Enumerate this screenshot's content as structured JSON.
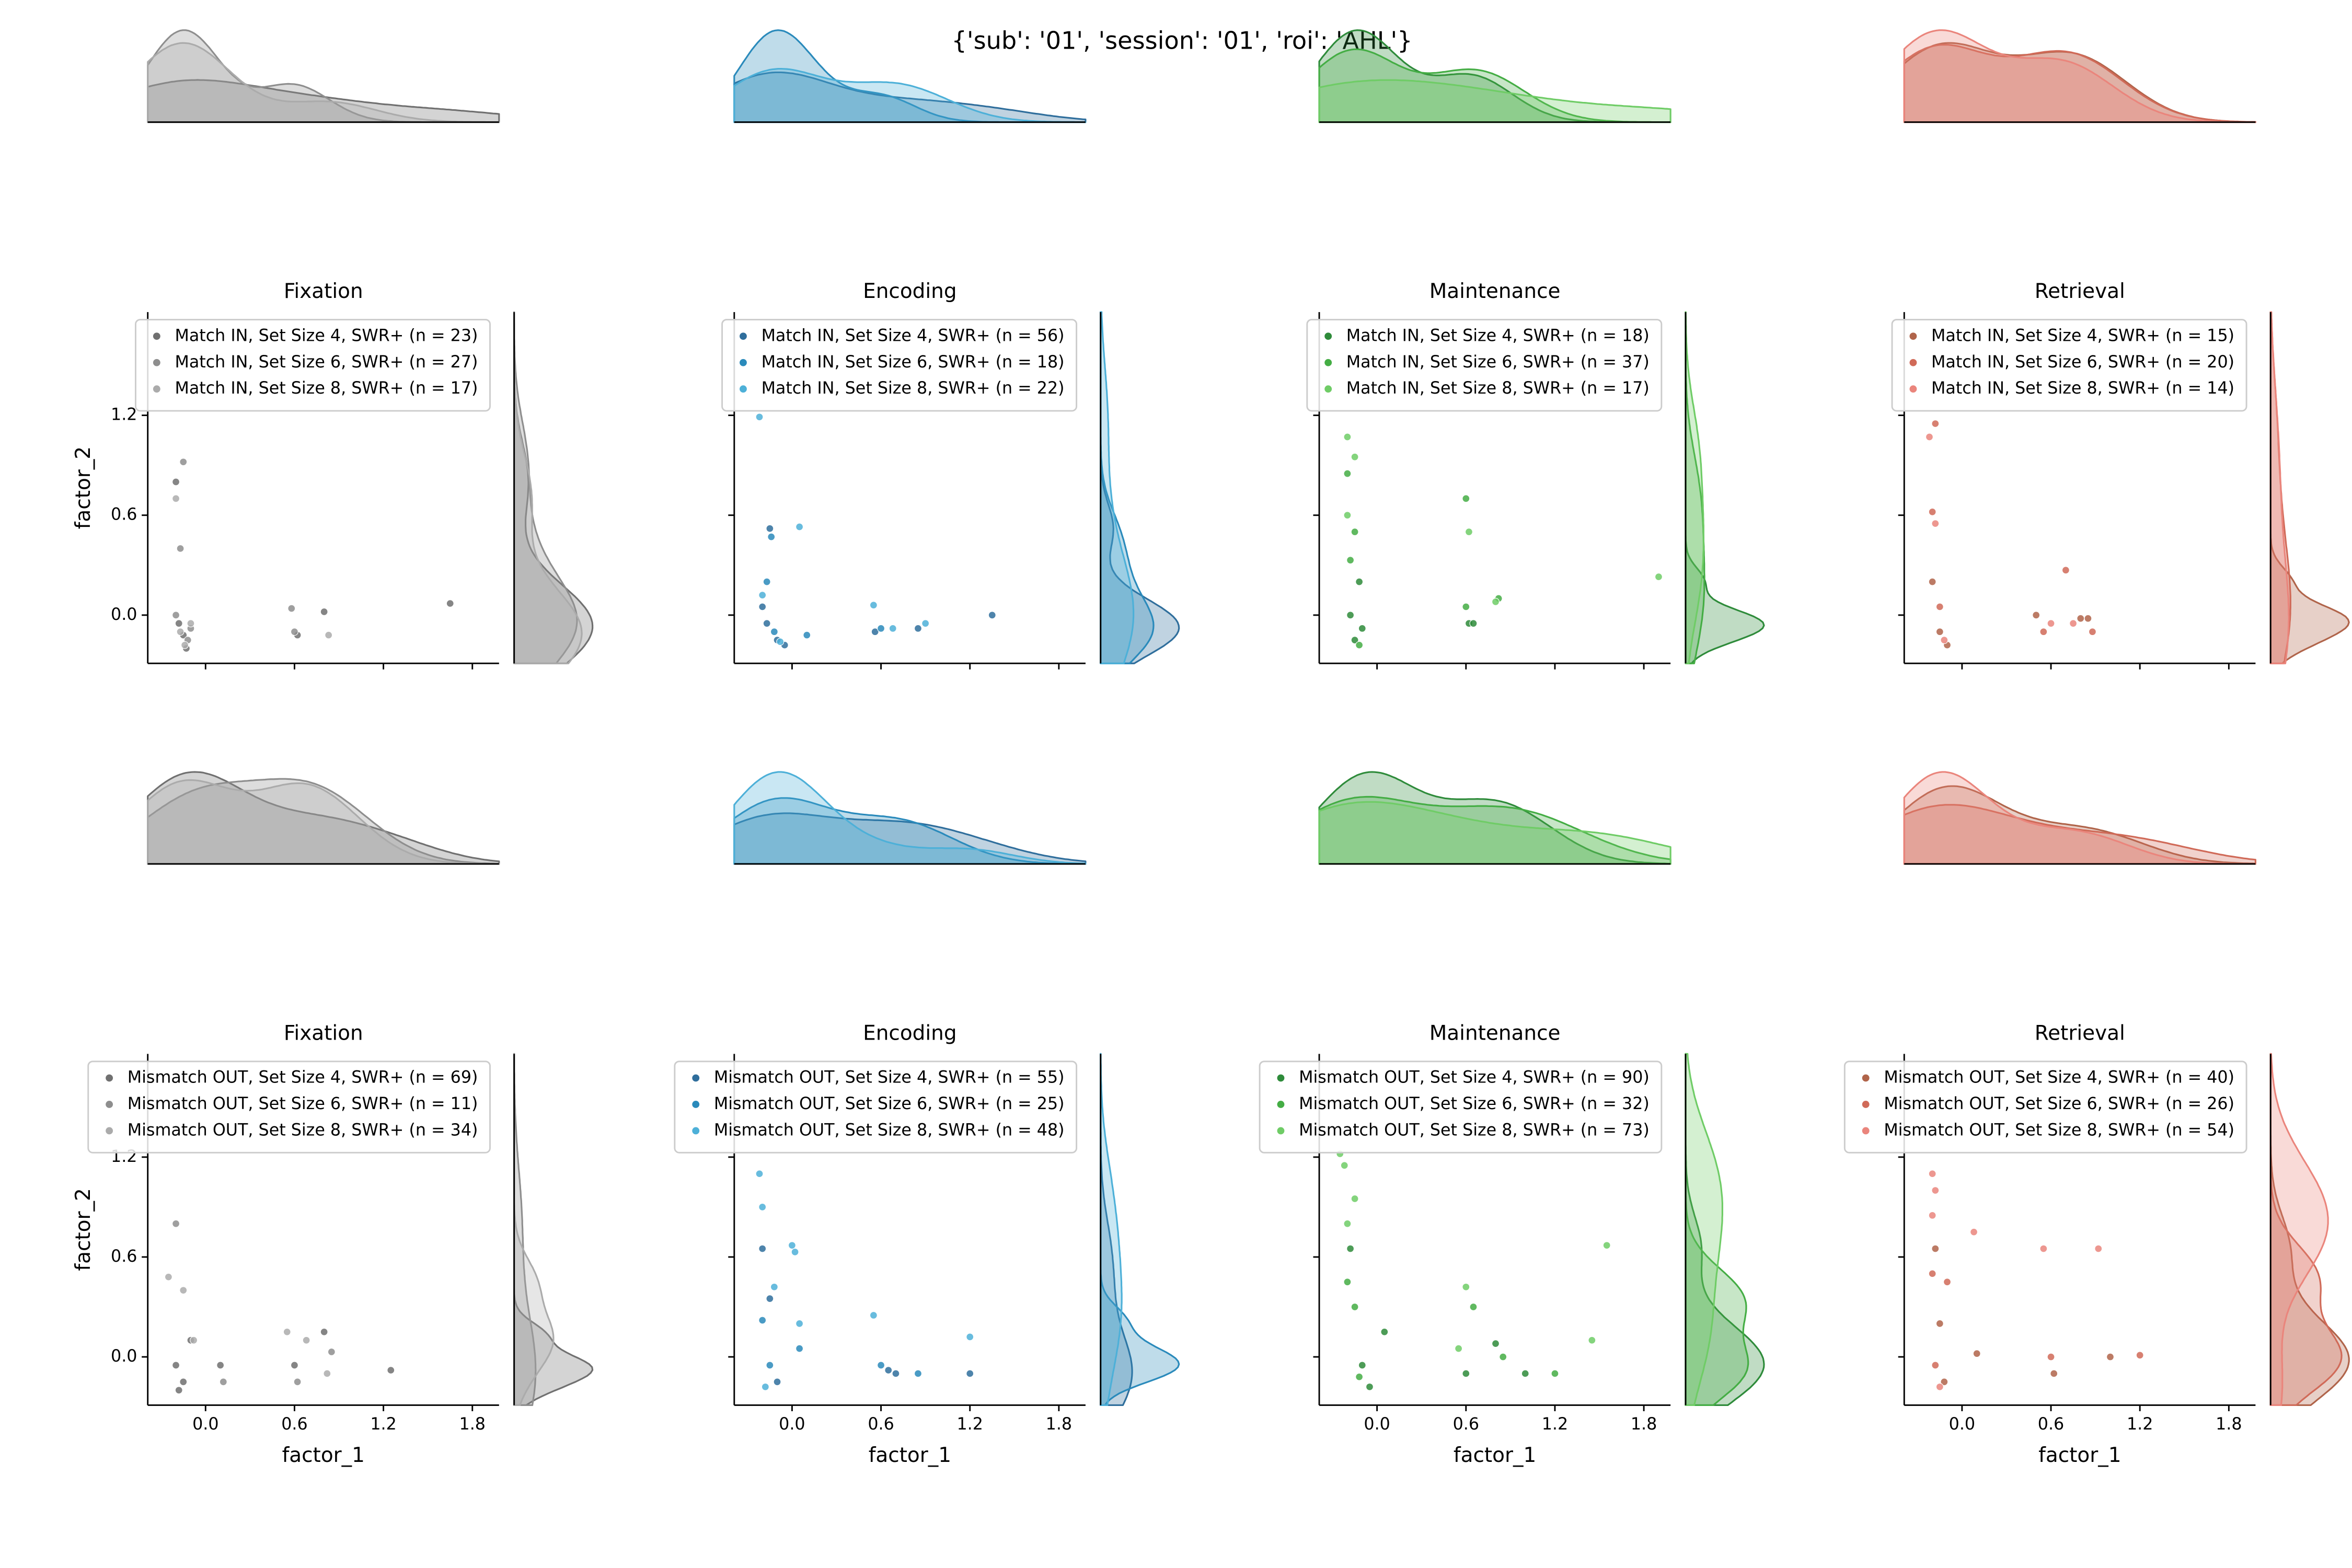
{
  "title": "{'sub': '01', 'session': '01', 'roi': 'AHL'}",
  "chart_data": [
    {
      "type": "scatter",
      "title": "Fixation",
      "ylabel": "factor_2",
      "xtick_labels": false,
      "ytick_labels": true,
      "xlim": [
        -0.39,
        1.98
      ],
      "ylim": [
        -0.29,
        1.82
      ],
      "xticks": [
        0,
        0.6,
        1.2,
        1.8
      ],
      "yticks": [
        {
          "value": 0,
          "label": "0.0"
        },
        0.6,
        1.2
      ],
      "series": [
        {
          "name": "Match IN, Set Size 4, SWR+ (n = 23)",
          "color": "#707070",
          "x": [
            -0.2,
            -0.18,
            -0.15,
            -0.13,
            0.62,
            0.8,
            1.65
          ],
          "y": [
            0.8,
            -0.05,
            -0.12,
            -0.2,
            -0.12,
            0.02,
            0.07
          ]
        },
        {
          "name": "Match IN, Set Size 6, SWR+ (n = 27)",
          "color": "#8e8e8e",
          "x": [
            -0.15,
            -0.17,
            -0.12,
            -0.2,
            0.58,
            0.6,
            -0.1
          ],
          "y": [
            0.92,
            0.4,
            -0.15,
            0.0,
            0.04,
            -0.1,
            -0.08
          ]
        },
        {
          "name": "Match IN, Set Size 8, SWR+ (n = 17)",
          "color": "#ababab",
          "x": [
            -0.2,
            -0.17,
            -0.14,
            0.83,
            -0.1
          ],
          "y": [
            0.7,
            -0.1,
            -0.18,
            -0.12,
            -0.05
          ]
        }
      ]
    },
    {
      "type": "scatter",
      "title": "Encoding",
      "xtick_labels": false,
      "ytick_labels": false,
      "xlim": [
        -0.39,
        1.98
      ],
      "ylim": [
        -0.29,
        1.82
      ],
      "xticks": [
        0,
        0.6,
        1.2,
        1.8
      ],
      "yticks": [
        0,
        0.6,
        1.2
      ],
      "series": [
        {
          "name": "Match IN, Set Size 4, SWR+ (n = 56)",
          "color": "#2f6e9c",
          "x": [
            -0.15,
            -0.2,
            -0.1,
            -0.05,
            0.56,
            0.85,
            1.35,
            -0.17
          ],
          "y": [
            0.52,
            0.05,
            -0.15,
            -0.18,
            -0.1,
            -0.08,
            0.0,
            -0.05
          ]
        },
        {
          "name": "Match IN, Set Size 6, SWR+ (n = 18)",
          "color": "#2a8abb",
          "x": [
            -0.14,
            -0.17,
            0.1,
            0.6,
            -0.12
          ],
          "y": [
            0.47,
            0.2,
            -0.12,
            -0.08,
            -0.1
          ]
        },
        {
          "name": "Match IN, Set Size 8, SWR+ (n = 22)",
          "color": "#4db0d8",
          "x": [
            -0.22,
            0.05,
            -0.2,
            0.55,
            0.68,
            0.9,
            -0.08
          ],
          "y": [
            1.19,
            0.53,
            0.12,
            0.06,
            -0.08,
            -0.05,
            -0.16
          ]
        }
      ]
    },
    {
      "type": "scatter",
      "title": "Maintenance",
      "xtick_labels": false,
      "ytick_labels": false,
      "xlim": [
        -0.39,
        1.98
      ],
      "ylim": [
        -0.29,
        1.82
      ],
      "xticks": [
        0,
        0.6,
        1.2,
        1.8
      ],
      "yticks": [
        0,
        0.6,
        1.2
      ],
      "series": [
        {
          "name": "Match IN, Set Size 4, SWR+ (n = 18)",
          "color": "#2e8b3a",
          "x": [
            -0.18,
            -0.15,
            -0.12,
            0.62,
            0.65,
            -0.1
          ],
          "y": [
            0.0,
            -0.15,
            0.2,
            -0.05,
            -0.05,
            -0.08
          ]
        },
        {
          "name": "Match IN, Set Size 6, SWR+ (n = 37)",
          "color": "#44ad44",
          "x": [
            -0.2,
            -0.15,
            0.6,
            0.6,
            0.82,
            -0.18,
            -0.12
          ],
          "y": [
            0.85,
            0.5,
            0.7,
            0.05,
            0.1,
            0.33,
            -0.18
          ]
        },
        {
          "name": "Match IN, Set Size 8, SWR+ (n = 17)",
          "color": "#6fcc66",
          "x": [
            -0.2,
            -0.15,
            -0.2,
            0.62,
            0.8,
            1.9
          ],
          "y": [
            1.07,
            0.95,
            0.6,
            0.5,
            0.08,
            0.23
          ]
        }
      ]
    },
    {
      "type": "scatter",
      "title": "Retrieval",
      "xtick_labels": false,
      "ytick_labels": false,
      "xlim": [
        -0.39,
        1.98
      ],
      "ylim": [
        -0.29,
        1.82
      ],
      "xticks": [
        0,
        0.6,
        1.2,
        1.8
      ],
      "yticks": [
        0,
        0.6,
        1.2
      ],
      "series": [
        {
          "name": "Match IN, Set Size 4, SWR+ (n = 15)",
          "color": "#b0644a",
          "x": [
            -0.2,
            -0.15,
            -0.1,
            0.5,
            0.8,
            0.85
          ],
          "y": [
            0.2,
            -0.1,
            -0.18,
            0.0,
            -0.02,
            -0.02
          ]
        },
        {
          "name": "Match IN, Set Size 6, SWR+ (n = 20)",
          "color": "#d06a58",
          "x": [
            -0.18,
            -0.2,
            0.55,
            0.7,
            0.88,
            -0.15
          ],
          "y": [
            1.15,
            0.62,
            -0.1,
            0.27,
            -0.1,
            0.05
          ]
        },
        {
          "name": "Match IN, Set Size 8, SWR+ (n = 14)",
          "color": "#ea857c",
          "x": [
            -0.22,
            -0.18,
            0.6,
            0.75,
            -0.12
          ],
          "y": [
            1.07,
            0.55,
            -0.05,
            -0.05,
            -0.15
          ]
        }
      ]
    },
    {
      "type": "scatter",
      "title": "Fixation",
      "xlabel": "factor_1",
      "ylabel": "factor_2",
      "xtick_labels": true,
      "ytick_labels": true,
      "xlim": [
        -0.39,
        1.98
      ],
      "ylim": [
        -0.29,
        1.82
      ],
      "xticks": [
        {
          "value": 0,
          "label": "0.0"
        },
        0.6,
        1.2,
        1.8
      ],
      "yticks": [
        {
          "value": 0,
          "label": "0.0"
        },
        0.6,
        1.2
      ],
      "series": [
        {
          "name": "Mismatch OUT, Set Size 4, SWR+ (n = 69)",
          "color": "#707070",
          "x": [
            -0.2,
            -0.15,
            -0.1,
            0.1,
            0.6,
            0.8,
            1.25,
            -0.18
          ],
          "y": [
            -0.05,
            -0.15,
            0.1,
            -0.05,
            -0.05,
            0.15,
            -0.08,
            -0.2
          ]
        },
        {
          "name": "Mismatch OUT, Set Size 6, SWR+ (n = 11)",
          "color": "#8e8e8e",
          "x": [
            -0.2,
            0.12,
            0.62,
            0.85
          ],
          "y": [
            0.8,
            -0.15,
            -0.15,
            0.03
          ]
        },
        {
          "name": "Mismatch OUT, Set Size 8, SWR+ (n = 34)",
          "color": "#ababab",
          "x": [
            -0.25,
            -0.15,
            -0.08,
            0.55,
            0.68,
            0.82
          ],
          "y": [
            0.48,
            0.4,
            0.1,
            0.15,
            0.1,
            -0.1
          ]
        }
      ]
    },
    {
      "type": "scatter",
      "title": "Encoding",
      "xlabel": "factor_1",
      "xtick_labels": true,
      "ytick_labels": false,
      "xlim": [
        -0.39,
        1.98
      ],
      "ylim": [
        -0.29,
        1.82
      ],
      "xticks": [
        {
          "value": 0,
          "label": "0.0"
        },
        0.6,
        1.2,
        1.8
      ],
      "yticks": [
        0,
        0.6,
        1.2
      ],
      "series": [
        {
          "name": "Mismatch OUT, Set Size 4, SWR+ (n = 55)",
          "color": "#2f6e9c",
          "x": [
            -0.2,
            -0.15,
            0.65,
            0.7,
            1.2,
            -0.1
          ],
          "y": [
            0.65,
            0.35,
            -0.08,
            -0.1,
            -0.1,
            -0.15
          ]
        },
        {
          "name": "Mismatch OUT, Set Size 6, SWR+ (n = 25)",
          "color": "#2a8abb",
          "x": [
            -0.2,
            0.05,
            0.6,
            0.85,
            -0.15
          ],
          "y": [
            0.22,
            0.05,
            -0.05,
            -0.1,
            -0.05
          ]
        },
        {
          "name": "Mismatch OUT, Set Size 8, SWR+ (n = 48)",
          "color": "#4db0d8",
          "x": [
            -0.22,
            -0.2,
            0.0,
            0.02,
            -0.12,
            0.05,
            0.55,
            1.2,
            -0.18
          ],
          "y": [
            1.1,
            0.9,
            0.67,
            0.63,
            0.42,
            0.2,
            0.25,
            0.12,
            -0.18
          ]
        }
      ]
    },
    {
      "type": "scatter",
      "title": "Maintenance",
      "xlabel": "factor_1",
      "xtick_labels": true,
      "ytick_labels": false,
      "xlim": [
        -0.39,
        1.98
      ],
      "ylim": [
        -0.29,
        1.82
      ],
      "xticks": [
        {
          "value": 0,
          "label": "0.0"
        },
        0.6,
        1.2,
        1.8
      ],
      "yticks": [
        0,
        0.6,
        1.2
      ],
      "series": [
        {
          "name": "Mismatch OUT, Set Size 4, SWR+ (n = 90)",
          "color": "#2e8b3a",
          "x": [
            -0.18,
            -0.1,
            0.05,
            0.6,
            0.8,
            1.0,
            -0.05
          ],
          "y": [
            0.65,
            -0.05,
            0.15,
            -0.1,
            0.08,
            -0.1,
            -0.18
          ]
        },
        {
          "name": "Mismatch OUT, Set Size 6, SWR+ (n = 32)",
          "color": "#44ad44",
          "x": [
            -0.2,
            -0.15,
            0.65,
            0.85,
            1.2,
            -0.12
          ],
          "y": [
            0.45,
            0.3,
            0.3,
            0.0,
            -0.1,
            -0.12
          ]
        },
        {
          "name": "Mismatch OUT, Set Size 8, SWR+ (n = 73)",
          "color": "#6fcc66",
          "x": [
            -0.25,
            -0.22,
            -0.15,
            -0.2,
            0.6,
            0.55,
            1.45,
            1.55
          ],
          "y": [
            1.22,
            1.15,
            0.95,
            0.8,
            0.42,
            0.05,
            0.1,
            0.67
          ]
        }
      ]
    },
    {
      "type": "scatter",
      "title": "Retrieval",
      "xlabel": "factor_1",
      "xtick_labels": true,
      "ytick_labels": false,
      "xlim": [
        -0.39,
        1.98
      ],
      "ylim": [
        -0.29,
        1.82
      ],
      "xticks": [
        {
          "value": 0,
          "label": "0.0"
        },
        0.6,
        1.2,
        1.8
      ],
      "yticks": [
        0,
        0.6,
        1.2
      ],
      "series": [
        {
          "name": "Mismatch OUT, Set Size 4, SWR+ (n = 40)",
          "color": "#b0644a",
          "x": [
            -0.18,
            -0.15,
            0.1,
            0.62,
            1.0,
            -0.12
          ],
          "y": [
            0.65,
            0.2,
            0.02,
            -0.1,
            0.0,
            -0.15
          ]
        },
        {
          "name": "Mismatch OUT, Set Size 6, SWR+ (n = 26)",
          "color": "#d06a58",
          "x": [
            -0.2,
            -0.1,
            0.6,
            1.2,
            -0.18
          ],
          "y": [
            0.5,
            0.45,
            0.0,
            0.01,
            -0.05
          ]
        },
        {
          "name": "Mismatch OUT, Set Size 8, SWR+ (n = 54)",
          "color": "#ea857c",
          "x": [
            -0.2,
            -0.18,
            -0.2,
            0.08,
            0.55,
            0.92,
            -0.15
          ],
          "y": [
            1.1,
            1.0,
            0.85,
            0.75,
            0.65,
            0.65,
            -0.18
          ]
        }
      ]
    }
  ]
}
